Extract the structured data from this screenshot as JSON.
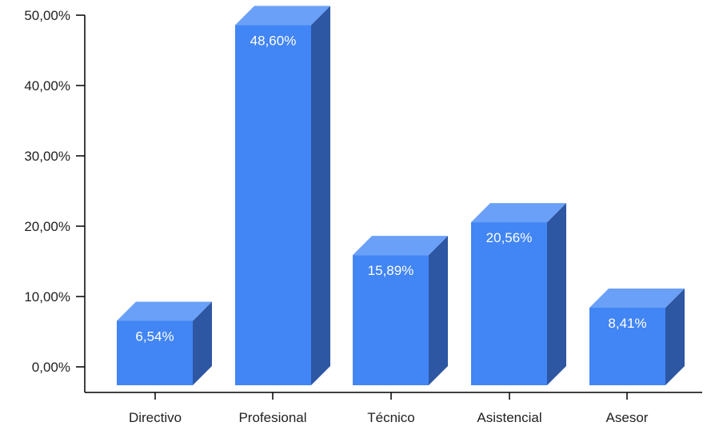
{
  "chart_data": {
    "type": "bar",
    "style": "3d-column",
    "categories": [
      "Directivo",
      "Profesional",
      "Técnico",
      "Asistencial",
      "Asesor"
    ],
    "values": [
      6.54,
      48.6,
      15.89,
      20.56,
      8.41
    ],
    "data_labels": [
      "6,54%",
      "48,60%",
      "15,89%",
      "20,56%",
      "8,41%"
    ],
    "y_ticks": [
      0,
      10,
      20,
      30,
      40,
      50
    ],
    "y_tick_labels": [
      "0,00%",
      "10,00%",
      "20,00%",
      "30,00%",
      "40,00%",
      "50,00%"
    ],
    "ylim": [
      0,
      50
    ],
    "title": "",
    "xlabel": "",
    "ylabel": "",
    "grid": false,
    "legend": "none"
  },
  "colors": {
    "bar_front": "#4285f4",
    "bar_top": "#6aa0f7",
    "bar_side": "#2d56a3",
    "axis": "#000000",
    "text": "#222222",
    "data_label": "#ffffff"
  }
}
